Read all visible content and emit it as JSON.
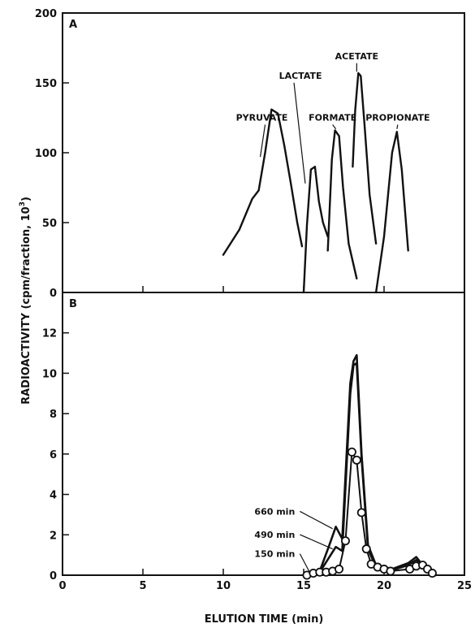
{
  "chart_data": [
    {
      "type": "line",
      "panel_label": "A",
      "xlim": [
        0,
        25
      ],
      "ylim": [
        0,
        200
      ],
      "x_ticks": [
        0,
        5,
        10,
        15,
        20,
        25
      ],
      "y_ticks": [
        "0",
        "50",
        "100",
        "150",
        "200"
      ],
      "grid": false,
      "series": [
        {
          "name": "PYRUVATE",
          "x": [
            10,
            11,
            11.8,
            12.2,
            12.6,
            13.0,
            13.4,
            13.8,
            14.2,
            14.6,
            14.9
          ],
          "y": [
            27,
            45,
            67,
            73,
            100,
            131,
            128,
            105,
            78,
            50,
            33
          ]
        },
        {
          "name": "LACTATE",
          "x": [
            15.0,
            15.2,
            15.45,
            15.7,
            15.95,
            16.2,
            16.5
          ],
          "y": [
            0,
            48,
            88,
            90,
            65,
            50,
            40
          ]
        },
        {
          "name": "FORMATE",
          "x": [
            16.5,
            16.75,
            16.95,
            17.2,
            17.45,
            17.8,
            18.3
          ],
          "y": [
            30,
            95,
            116,
            112,
            75,
            35,
            10
          ]
        },
        {
          "name": "ACETATE",
          "x": [
            18.05,
            18.2,
            18.4,
            18.55,
            18.8,
            19.1,
            19.5
          ],
          "y": [
            90,
            130,
            157,
            155,
            118,
            70,
            35
          ]
        },
        {
          "name": "PROPIONATE",
          "x": [
            19.5,
            20.0,
            20.5,
            20.8,
            21.1,
            21.5
          ],
          "y": [
            0,
            40,
            100,
            115,
            88,
            30
          ]
        }
      ],
      "annotations": [
        {
          "text": "PYRUVATE",
          "x": 12.4,
          "y": 123,
          "line_to": [
            12.3,
            97
          ]
        },
        {
          "text": "LACTATE",
          "x": 14.8,
          "y": 153,
          "line_to": [
            15.1,
            78
          ]
        },
        {
          "text": "FORMATE",
          "x": 16.8,
          "y": 123,
          "line_to": [
            17.0,
            117
          ]
        },
        {
          "text": "ACETATE",
          "x": 18.3,
          "y": 167,
          "line_to": [
            18.3,
            158
          ]
        },
        {
          "text": "PROPIONATE",
          "x": 20.85,
          "y": 123,
          "line_to": [
            20.8,
            117
          ]
        }
      ]
    },
    {
      "type": "line",
      "panel_label": "B",
      "xlim": [
        0,
        25
      ],
      "ylim": [
        0,
        14
      ],
      "x_ticks": [
        "0",
        "5",
        "10",
        "15",
        "20",
        "25"
      ],
      "y_ticks": [
        "0",
        "2",
        "4",
        "6",
        "8",
        "10",
        "12"
      ],
      "grid": false,
      "xlabel": "ELUTION TIME (min)",
      "series": [
        {
          "name": "660 min",
          "x": [
            15.0,
            16.0,
            16.6,
            17.0,
            17.4,
            17.9,
            18.1,
            18.3,
            18.6,
            19.0,
            19.5,
            20.5,
            21.5,
            22.0,
            22.6,
            23.2
          ],
          "y": [
            0,
            0.2,
            1.5,
            2.4,
            1.8,
            9.5,
            10.6,
            10.9,
            6.0,
            1.5,
            0.5,
            0.3,
            0.6,
            0.9,
            0.3,
            0.0
          ]
        },
        {
          "name": "490 min",
          "x": [
            15.0,
            16.0,
            16.6,
            17.0,
            17.4,
            17.9,
            18.1,
            18.3,
            18.6,
            19.0,
            19.5,
            20.5,
            21.5,
            22.0,
            22.6,
            23.2
          ],
          "y": [
            0,
            0.15,
            0.9,
            1.4,
            1.2,
            9.0,
            10.4,
            10.5,
            5.8,
            1.3,
            0.4,
            0.25,
            0.5,
            0.75,
            0.25,
            0.0
          ]
        },
        {
          "name": "150 min",
          "x": [
            15.2,
            15.6,
            16.0,
            16.4,
            16.8,
            17.2,
            17.6,
            18.0,
            18.3,
            18.6,
            18.9,
            19.2,
            19.6,
            20.0,
            20.4,
            21.6,
            22.0,
            22.4,
            22.7,
            23.0
          ],
          "y": [
            0,
            0.1,
            0.15,
            0.15,
            0.2,
            0.3,
            1.7,
            6.1,
            5.7,
            3.1,
            1.3,
            0.55,
            0.4,
            0.3,
            0.2,
            0.3,
            0.45,
            0.5,
            0.3,
            0.1
          ]
        }
      ],
      "annotations": [
        {
          "text": "660 min",
          "x": 13.2,
          "y": 3.0,
          "line_to": [
            16.8,
            2.3
          ]
        },
        {
          "text": "490 min",
          "x": 13.2,
          "y": 1.85,
          "line_to": [
            16.8,
            1.3
          ]
        },
        {
          "text": "150 min",
          "x": 13.2,
          "y": 0.9,
          "line_to": [
            15.4,
            0.1
          ]
        }
      ]
    }
  ],
  "shared_ylabel_parts": [
    "RADIOACTIVITY (cpm/fraction,  10",
    "3",
    ")"
  ]
}
